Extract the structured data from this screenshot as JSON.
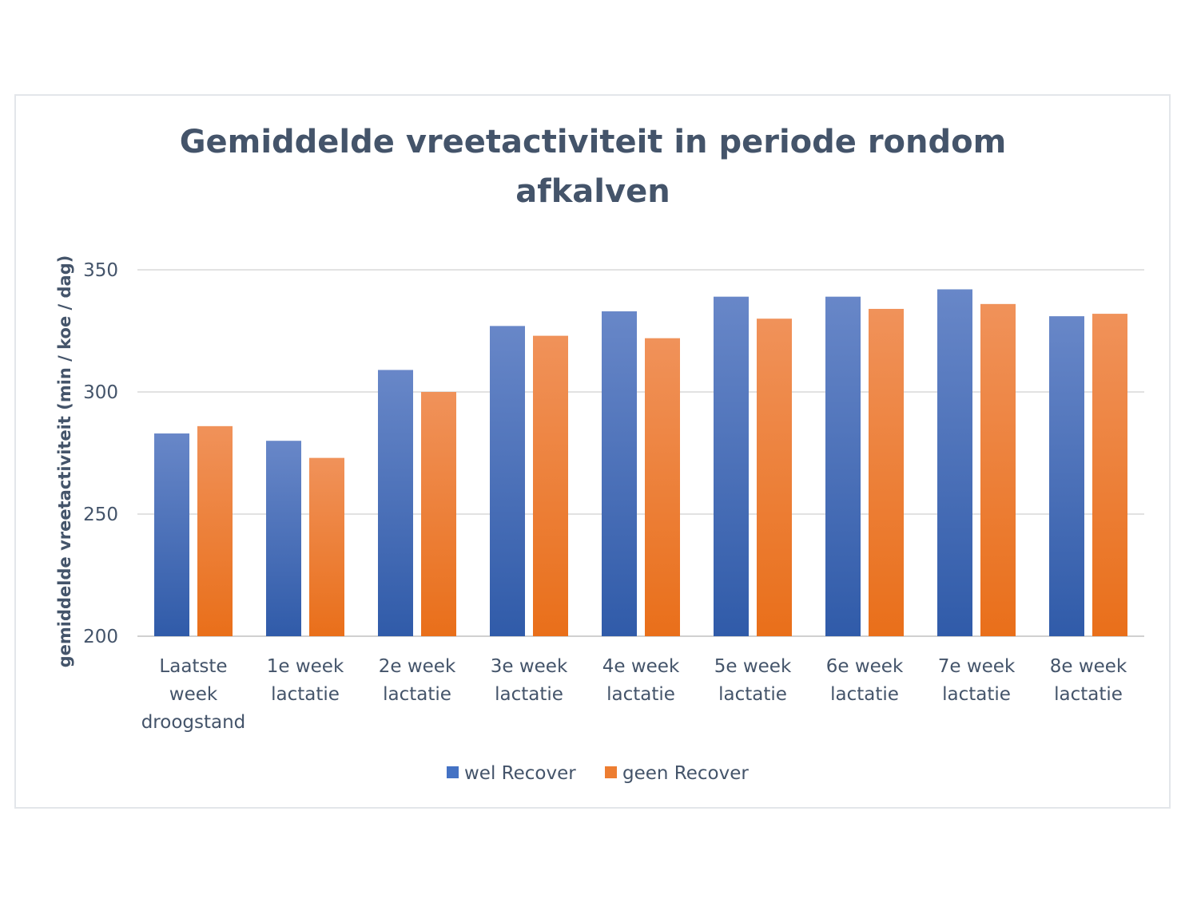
{
  "colors": {
    "series_blue": "#4472c4",
    "series_orange": "#ed7d31",
    "text": "#44546a",
    "grid": "#d9d9d9"
  },
  "chart_data": {
    "type": "bar",
    "title": [
      "Gemiddelde vreetactiviteit in periode rondom",
      "afkalven"
    ],
    "xlabel": "",
    "ylabel": "gemiddelde vreetactiviteit (min / koe / dag)",
    "ylim": [
      200,
      350
    ],
    "yticks": [
      "200",
      "250",
      "300",
      "350"
    ],
    "grid": true,
    "legend": "bottom",
    "categories": [
      [
        "Laatste",
        "week",
        "droogstand"
      ],
      [
        "1e week",
        "lactatie"
      ],
      [
        "2e week",
        "lactatie"
      ],
      [
        "3e week",
        "lactatie"
      ],
      [
        "4e week",
        "lactatie"
      ],
      [
        "5e week",
        "lactatie"
      ],
      [
        "6e week",
        "lactatie"
      ],
      [
        "7e week",
        "lactatie"
      ],
      [
        "8e week",
        "lactatie"
      ]
    ],
    "series": [
      {
        "name": "wel Recover",
        "color": "#4472c4",
        "values": [
          283,
          280,
          309,
          327,
          333,
          339,
          339,
          342,
          331
        ]
      },
      {
        "name": "geen Recover",
        "color": "#ed7d31",
        "values": [
          286,
          273,
          300,
          323,
          322,
          330,
          334,
          336,
          332
        ]
      }
    ]
  }
}
